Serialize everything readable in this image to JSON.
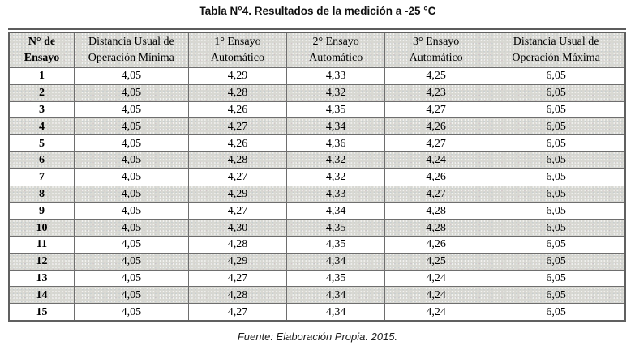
{
  "title": "Tabla N°4. Resultados de la medición a -25 °C",
  "source": "Fuente: Elaboración Propia. 2015.",
  "table": {
    "columns": [
      "N° de Ensayo",
      "Distancia Usual de Operación Mínima",
      "1° Ensayo Automático",
      "2° Ensayo Automático",
      "3° Ensayo Automático",
      "Distancia Usual de Operación Máxima"
    ],
    "rows": [
      [
        "1",
        "4,05",
        "4,29",
        "4,33",
        "4,25",
        "6,05"
      ],
      [
        "2",
        "4,05",
        "4,28",
        "4,32",
        "4,23",
        "6,05"
      ],
      [
        "3",
        "4,05",
        "4,26",
        "4,35",
        "4,27",
        "6,05"
      ],
      [
        "4",
        "4,05",
        "4,27",
        "4,34",
        "4,26",
        "6,05"
      ],
      [
        "5",
        "4,05",
        "4,26",
        "4,36",
        "4,27",
        "6,05"
      ],
      [
        "6",
        "4,05",
        "4,28",
        "4,32",
        "4,24",
        "6,05"
      ],
      [
        "7",
        "4,05",
        "4,27",
        "4,32",
        "4,26",
        "6,05"
      ],
      [
        "8",
        "4,05",
        "4,29",
        "4,33",
        "4,27",
        "6,05"
      ],
      [
        "9",
        "4,05",
        "4,27",
        "4,34",
        "4,28",
        "6,05"
      ],
      [
        "10",
        "4,05",
        "4,30",
        "4,35",
        "4,28",
        "6,05"
      ],
      [
        "11",
        "4,05",
        "4,28",
        "4,35",
        "4,26",
        "6,05"
      ],
      [
        "12",
        "4,05",
        "4,29",
        "4,34",
        "4,25",
        "6,05"
      ],
      [
        "13",
        "4,05",
        "4,27",
        "4,35",
        "4,24",
        "6,05"
      ],
      [
        "14",
        "4,05",
        "4,28",
        "4,34",
        "4,24",
        "6,05"
      ],
      [
        "15",
        "4,05",
        "4,27",
        "4,34",
        "4,24",
        "6,05"
      ]
    ]
  },
  "colors": {
    "shaded_row_bg": "#d8d8d2",
    "plain_row_bg": "#ffffff",
    "border": "#6e6e6e",
    "outer_border": "#5c5c5c",
    "text": "#000000"
  }
}
